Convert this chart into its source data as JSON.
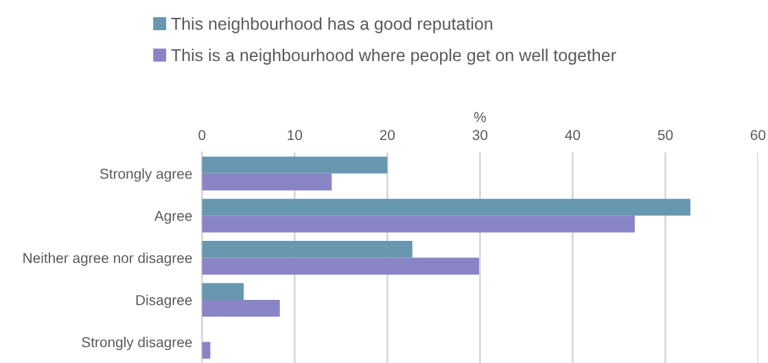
{
  "chart_data": {
    "type": "bar",
    "orientation": "horizontal",
    "xlabel": "%",
    "categories": [
      "Strongly agree",
      "Agree",
      "Neither agree nor disagree",
      "Disagree",
      "Strongly disagree"
    ],
    "series": [
      {
        "name": "This neighbourhood has a good reputation",
        "color": "#6897b0",
        "values": [
          20,
          52.7,
          22.7,
          4.5,
          0
        ]
      },
      {
        "name": "This is a neighbourhood where people get on well together",
        "color": "#8884c6",
        "values": [
          14,
          46.7,
          29.9,
          8.4,
          0.9
        ]
      }
    ],
    "xlim": [
      0,
      60
    ],
    "xticks": [
      0,
      10,
      20,
      30,
      40,
      50,
      60
    ],
    "grid": "x",
    "legend": "top"
  }
}
